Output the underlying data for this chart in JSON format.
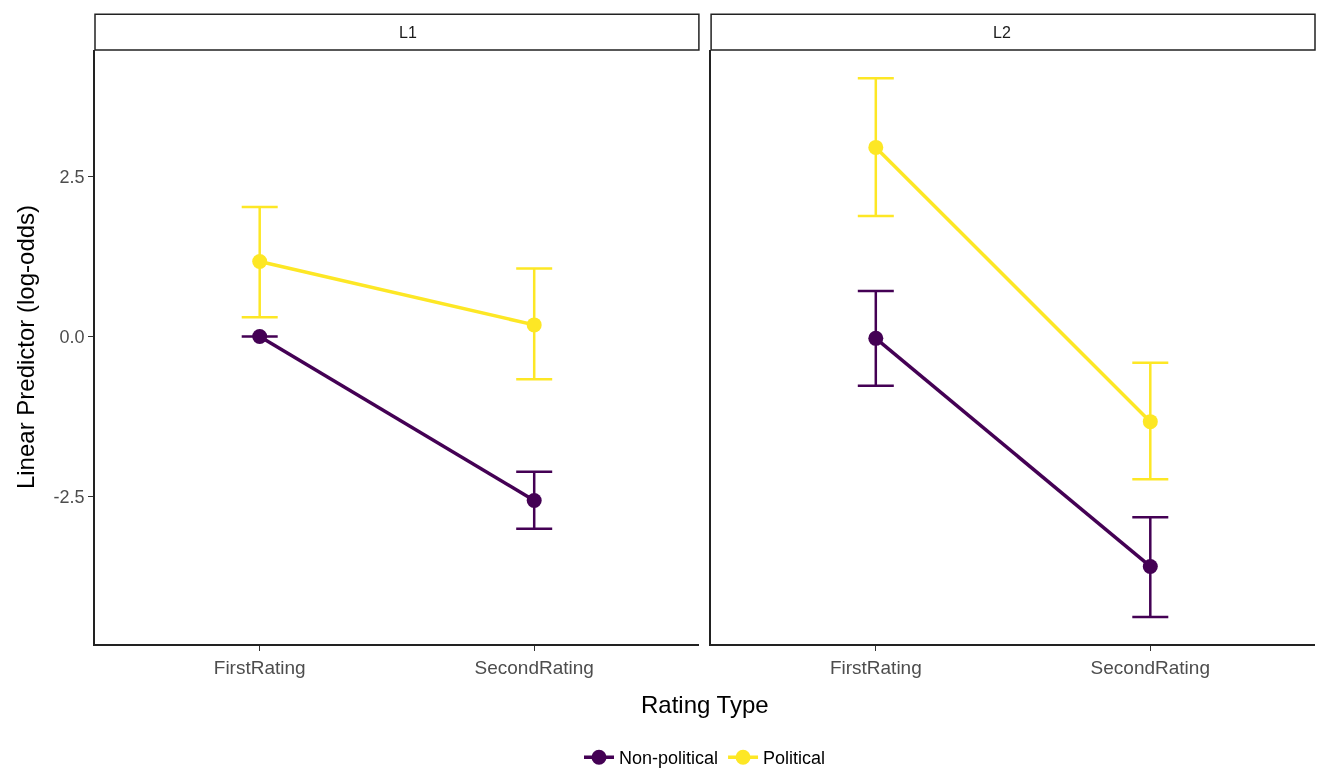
{
  "chart_data": [
    {
      "type": "line",
      "title": "L1",
      "xlabel": "Rating Type",
      "ylabel": "Linear Predictor (log-odds)",
      "categories": [
        "FirstRating",
        "SecondRating"
      ],
      "ylim": [
        -4.8,
        4.47
      ],
      "yticks": [
        2.5,
        {
          "value": 0,
          "label": "0.0"
        },
        -2.5
      ],
      "legend": "bottom",
      "marker": "circle",
      "line_style": "solid",
      "series": [
        {
          "name": "Non-political",
          "color": "#440154",
          "values": [
            0.0,
            -2.56
          ],
          "errors": [
            [
              0.0,
              0.0
            ],
            [
              -3.0,
              -2.11
            ]
          ]
        },
        {
          "name": "Political",
          "color": "#fde725",
          "values": [
            1.17,
            0.18
          ],
          "errors": [
            [
              0.3,
              2.02
            ],
            [
              -0.67,
              1.06
            ]
          ]
        }
      ]
    },
    {
      "type": "line",
      "title": "L2",
      "categories": [
        "FirstRating",
        "SecondRating"
      ],
      "ylim": [
        -4.8,
        4.47
      ],
      "tick_labels": "x",
      "legend": "bottom",
      "marker": "circle",
      "line_style": "solid",
      "series": [
        {
          "color": "#440154",
          "values": [
            -0.03,
            -3.59
          ],
          "errors": [
            [
              -0.77,
              0.71
            ],
            [
              -4.38,
              -2.82
            ]
          ]
        },
        {
          "color": "#fde725",
          "values": [
            2.95,
            -1.33
          ],
          "errors": [
            [
              1.88,
              4.03
            ],
            [
              -2.23,
              -0.41
            ]
          ]
        }
      ]
    }
  ]
}
